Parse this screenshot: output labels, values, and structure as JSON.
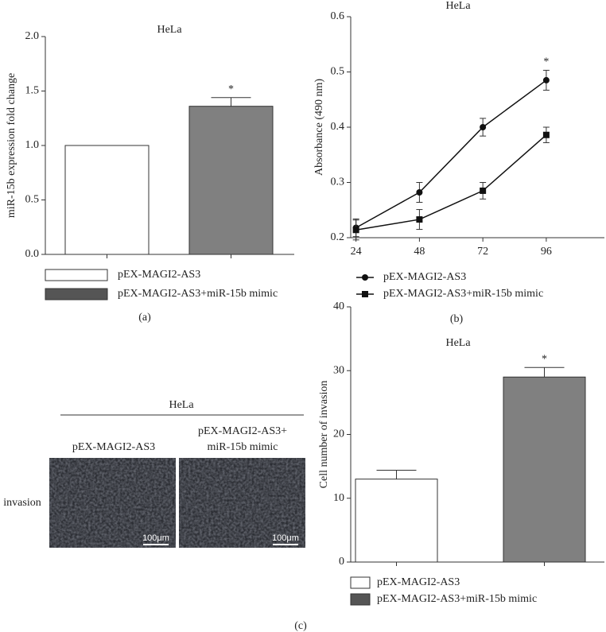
{
  "chart_data": [
    {
      "type": "bar",
      "title": "HeLa",
      "y_label": "miR-15b expression fold change",
      "categories": [
        null
      ],
      "series": [
        {
          "name": "pEX-MAGI2-AS3",
          "color": "#ffffff",
          "legend_color": "#ffffff",
          "values": [
            1.0
          ],
          "errors": [
            0
          ]
        },
        {
          "name": "pEX-MAGI2-AS3+miR-15b mimic",
          "color": "#808080",
          "legend_color": "#555555",
          "values": [
            1.36
          ],
          "errors": [
            0.08
          ]
        }
      ],
      "ylim": [
        0,
        2
      ],
      "yticks": [
        {
          "value": 0,
          "label": "0.0"
        },
        0.5,
        {
          "value": 1,
          "label": "1.0"
        },
        1.5,
        {
          "value": 2,
          "label": "2.0"
        }
      ],
      "annotations": [
        "*"
      ],
      "grid": false
    },
    {
      "type": "line",
      "title": "HeLa",
      "y_label": "Absorbance (490 nm)",
      "x": [
        24,
        48,
        72,
        96
      ],
      "series": [
        {
          "name": "pEX-MAGI2-AS3",
          "color": "#111111",
          "marker": "circle",
          "values": [
            0.218,
            0.282,
            0.4,
            0.485
          ],
          "errors": [
            0.016,
            0.018,
            0.016,
            0.018
          ]
        },
        {
          "name": "pEX-MAGI2-AS3+miR-15b mimic",
          "color": "#111111",
          "marker": "square",
          "values": [
            0.214,
            0.233,
            0.285,
            0.386
          ],
          "errors": [
            0.018,
            0.018,
            0.015,
            0.014
          ]
        }
      ],
      "xlim": [
        22,
        118
      ],
      "xticks": [
        24,
        48,
        72,
        96
      ],
      "ylim": [
        0.2,
        0.6
      ],
      "yticks": [
        0.2,
        0.3,
        0.4,
        0.5,
        0.6
      ],
      "annotations": [
        "*"
      ],
      "grid": false
    },
    {
      "type": "bar",
      "title": "HeLa",
      "y_label": "Cell number of invasion",
      "categories": [
        null
      ],
      "series": [
        {
          "name": "pEX-MAGI2-AS3",
          "color": "#ffffff",
          "legend_color": "#ffffff",
          "values": [
            13
          ],
          "errors": [
            1.4
          ]
        },
        {
          "name": "pEX-MAGI2-AS3+miR-15b mimic",
          "color": "#808080",
          "legend_color": "#555555",
          "values": [
            29
          ],
          "errors": [
            1.5
          ]
        }
      ],
      "ylim": [
        0,
        40
      ],
      "yticks": [
        0,
        10,
        20,
        30,
        40
      ],
      "annotations": [
        "*"
      ],
      "grid": false
    }
  ],
  "image_panel": {
    "title": "HeLa",
    "columns": [
      [
        "pEX-MAGI2-AS3"
      ],
      [
        "pEX-MAGI2-AS3+",
        "miR-15b mimic"
      ]
    ],
    "row_label": "invasion",
    "scale_bar": "100μm"
  },
  "panel_labels": [
    "(a)",
    "(b)",
    "(c)"
  ]
}
